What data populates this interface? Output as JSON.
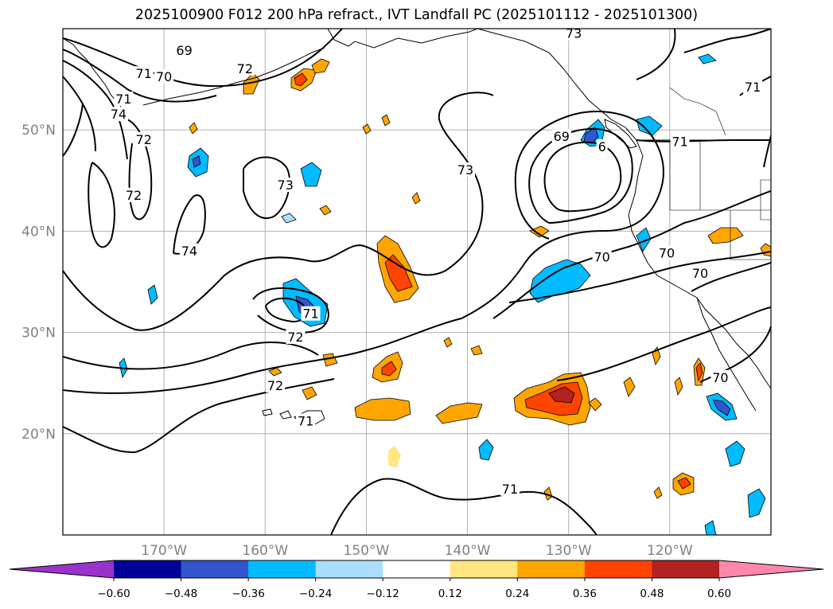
{
  "title": "2025100900 F012 200 hPa refract., IVT Landfall PC (2025101112 - 2025101300)",
  "map": {
    "lon_range": [
      -180,
      -110
    ],
    "lat_range": [
      10,
      60
    ],
    "lat_ticks": [
      {
        "value": 50,
        "label": "50°N"
      },
      {
        "value": 40,
        "label": "40°N"
      },
      {
        "value": 30,
        "label": "30°N"
      },
      {
        "value": 20,
        "label": "20°N"
      }
    ],
    "lon_ticks": [
      {
        "value": -170,
        "label": "170°W"
      },
      {
        "value": -160,
        "label": "160°W"
      },
      {
        "value": -150,
        "label": "150°W"
      },
      {
        "value": -140,
        "label": "140°W"
      },
      {
        "value": -130,
        "label": "130°W"
      },
      {
        "value": -120,
        "label": "120°W"
      }
    ],
    "gridlines": true
  },
  "contour_labels": [
    {
      "text": "69",
      "lon": -168,
      "lat": 57.8
    },
    {
      "text": "70",
      "lon": -170,
      "lat": 55.2
    },
    {
      "text": "71",
      "lon": -172,
      "lat": 55.5
    },
    {
      "text": "72",
      "lon": -162,
      "lat": 56
    },
    {
      "text": "73",
      "lon": -129.5,
      "lat": 59.5
    },
    {
      "text": "71",
      "lon": -174,
      "lat": 53
    },
    {
      "text": "74",
      "lon": -174.5,
      "lat": 51.5
    },
    {
      "text": "72",
      "lon": -172,
      "lat": 49
    },
    {
      "text": "72",
      "lon": -173,
      "lat": 43.5
    },
    {
      "text": "73",
      "lon": -158,
      "lat": 44.5
    },
    {
      "text": "74",
      "lon": -167.5,
      "lat": 38
    },
    {
      "text": "73",
      "lon": -140.2,
      "lat": 46
    },
    {
      "text": "69",
      "lon": -130.7,
      "lat": 49.3
    },
    {
      "text": "6",
      "lon": -126.7,
      "lat": 48.3
    },
    {
      "text": "71",
      "lon": -119,
      "lat": 48.8
    },
    {
      "text": "71",
      "lon": -111.8,
      "lat": 54.2
    },
    {
      "text": "70",
      "lon": -126.7,
      "lat": 37.4
    },
    {
      "text": "70",
      "lon": -120.3,
      "lat": 37.8
    },
    {
      "text": "70",
      "lon": -117,
      "lat": 35.8
    },
    {
      "text": "71",
      "lon": -155.5,
      "lat": 31.8
    },
    {
      "text": "72",
      "lon": -157,
      "lat": 29.5
    },
    {
      "text": "72",
      "lon": -159,
      "lat": 24.7
    },
    {
      "text": "71",
      "lon": -156,
      "lat": 21.2
    },
    {
      "text": "70",
      "lon": -115,
      "lat": 25.5
    },
    {
      "text": "71",
      "lon": -135.8,
      "lat": 14.5
    }
  ],
  "colorbar": {
    "colors": [
      "#9933cc",
      "#000099",
      "#3355cc",
      "#00bbff",
      "#aaddff",
      "#ffffff",
      "#ffe680",
      "#ffa500",
      "#ff4400",
      "#b22222",
      "#ff88aa"
    ],
    "tick_labels": [
      "−0.60",
      "−0.48",
      "−0.36",
      "−0.24",
      "−0.12",
      "0.12",
      "0.24",
      "0.36",
      "0.48",
      "0.60"
    ]
  }
}
